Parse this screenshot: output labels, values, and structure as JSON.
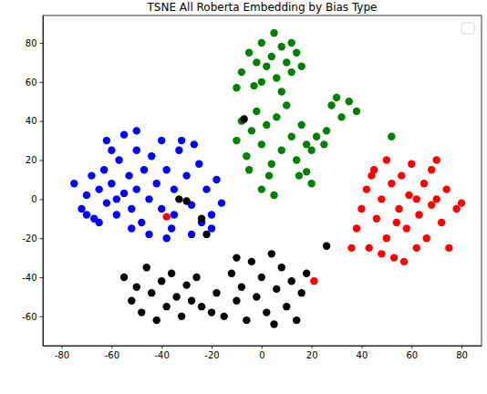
{
  "chart_data": {
    "type": "scatter",
    "title": "TSNE All Roberta Embedding by Bias Type",
    "xlim": [
      -87.5,
      88
    ],
    "ylim": [
      -75,
      94
    ],
    "xticks": [
      -80,
      -60,
      -40,
      -20,
      0,
      20,
      40,
      60,
      80
    ],
    "yticks": [
      -60,
      -40,
      -20,
      0,
      20,
      40,
      60,
      80
    ],
    "legend": "upper right",
    "marker": "circle",
    "series": [
      {
        "color": "blue",
        "x": [
          -75,
          -72,
          -70,
          -68,
          -67,
          -65,
          -63,
          -62,
          -60,
          -58,
          -57,
          -55,
          -53,
          -52,
          -50,
          -50,
          -48,
          -47,
          -45,
          -44,
          -42,
          -40,
          -40,
          -38,
          -36,
          -35,
          -33,
          -32,
          -30,
          -28,
          -27,
          -25,
          -24,
          -22,
          -20,
          -18,
          -16,
          -55,
          -50,
          -60,
          -65,
          -70,
          -58,
          -45,
          -38,
          -28,
          -20,
          -62,
          -52,
          -35
        ],
        "values": [
          8,
          -5,
          2,
          12,
          -10,
          5,
          15,
          -2,
          8,
          -8,
          20,
          3,
          12,
          -5,
          25,
          5,
          -12,
          15,
          0,
          22,
          8,
          -5,
          30,
          15,
          -15,
          5,
          25,
          30,
          12,
          -3,
          28,
          18,
          -12,
          5,
          -8,
          10,
          -2,
          33,
          35,
          25,
          -12,
          -8,
          0,
          -18,
          -20,
          -18,
          -15,
          30,
          -15,
          -8
        ]
      },
      {
        "color": "green",
        "x": [
          -8,
          -5,
          -3,
          0,
          2,
          4,
          6,
          8,
          10,
          12,
          14,
          -10,
          5,
          16,
          -2,
          8,
          0,
          12,
          -10,
          -8,
          -6,
          -4,
          -2,
          0,
          2,
          4,
          6,
          8,
          10,
          12,
          14,
          16,
          18,
          -5,
          0,
          5,
          3,
          28,
          32,
          35,
          38,
          30,
          22,
          25,
          20,
          26,
          15,
          20,
          18,
          52
        ],
        "values": [
          65,
          75,
          58,
          80,
          68,
          73,
          62,
          78,
          70,
          65,
          75,
          57,
          85,
          68,
          70,
          55,
          60,
          80,
          30,
          40,
          22,
          35,
          45,
          28,
          38,
          18,
          42,
          25,
          48,
          32,
          20,
          38,
          28,
          15,
          5,
          2,
          12,
          48,
          42,
          50,
          45,
          52,
          32,
          28,
          25,
          35,
          12,
          8,
          14,
          32
        ]
      },
      {
        "color": "red",
        "x": [
          38,
          40,
          42,
          43,
          45,
          46,
          48,
          50,
          50,
          52,
          53,
          55,
          56,
          58,
          59,
          60,
          62,
          63,
          65,
          66,
          68,
          70,
          72,
          74,
          75,
          78,
          80,
          36,
          44,
          57,
          62,
          68,
          54,
          48,
          70,
          -38,
          21
        ],
        "values": [
          -15,
          -5,
          5,
          -25,
          15,
          -10,
          0,
          -20,
          20,
          8,
          -30,
          -5,
          12,
          -15,
          2,
          18,
          -25,
          -8,
          8,
          -20,
          15,
          0,
          -12,
          5,
          -25,
          -5,
          -2,
          -25,
          12,
          -32,
          0,
          -3,
          -12,
          -28,
          20,
          -9,
          -42
        ]
      },
      {
        "color": "black",
        "x": [
          -55,
          -52,
          -50,
          -48,
          -46,
          -44,
          -42,
          -40,
          -38,
          -36,
          -34,
          -32,
          -30,
          -28,
          -26,
          -24,
          -18,
          -15,
          -12,
          -10,
          -8,
          -6,
          -4,
          -2,
          0,
          2,
          4,
          6,
          8,
          10,
          12,
          14,
          16,
          18,
          -20,
          -22,
          -24,
          -33,
          -30,
          -7,
          26,
          -10,
          5
        ],
        "values": [
          -40,
          -52,
          -45,
          -58,
          -35,
          -48,
          -62,
          -42,
          -55,
          -38,
          -50,
          -60,
          -44,
          -52,
          -40,
          -55,
          -48,
          -60,
          -38,
          -52,
          -45,
          -62,
          -32,
          -50,
          -40,
          -58,
          -28,
          -46,
          -35,
          -55,
          -42,
          -62,
          -48,
          -38,
          -58,
          -18,
          -10,
          0,
          -1,
          41,
          -24,
          -30,
          -64
        ]
      }
    ]
  }
}
